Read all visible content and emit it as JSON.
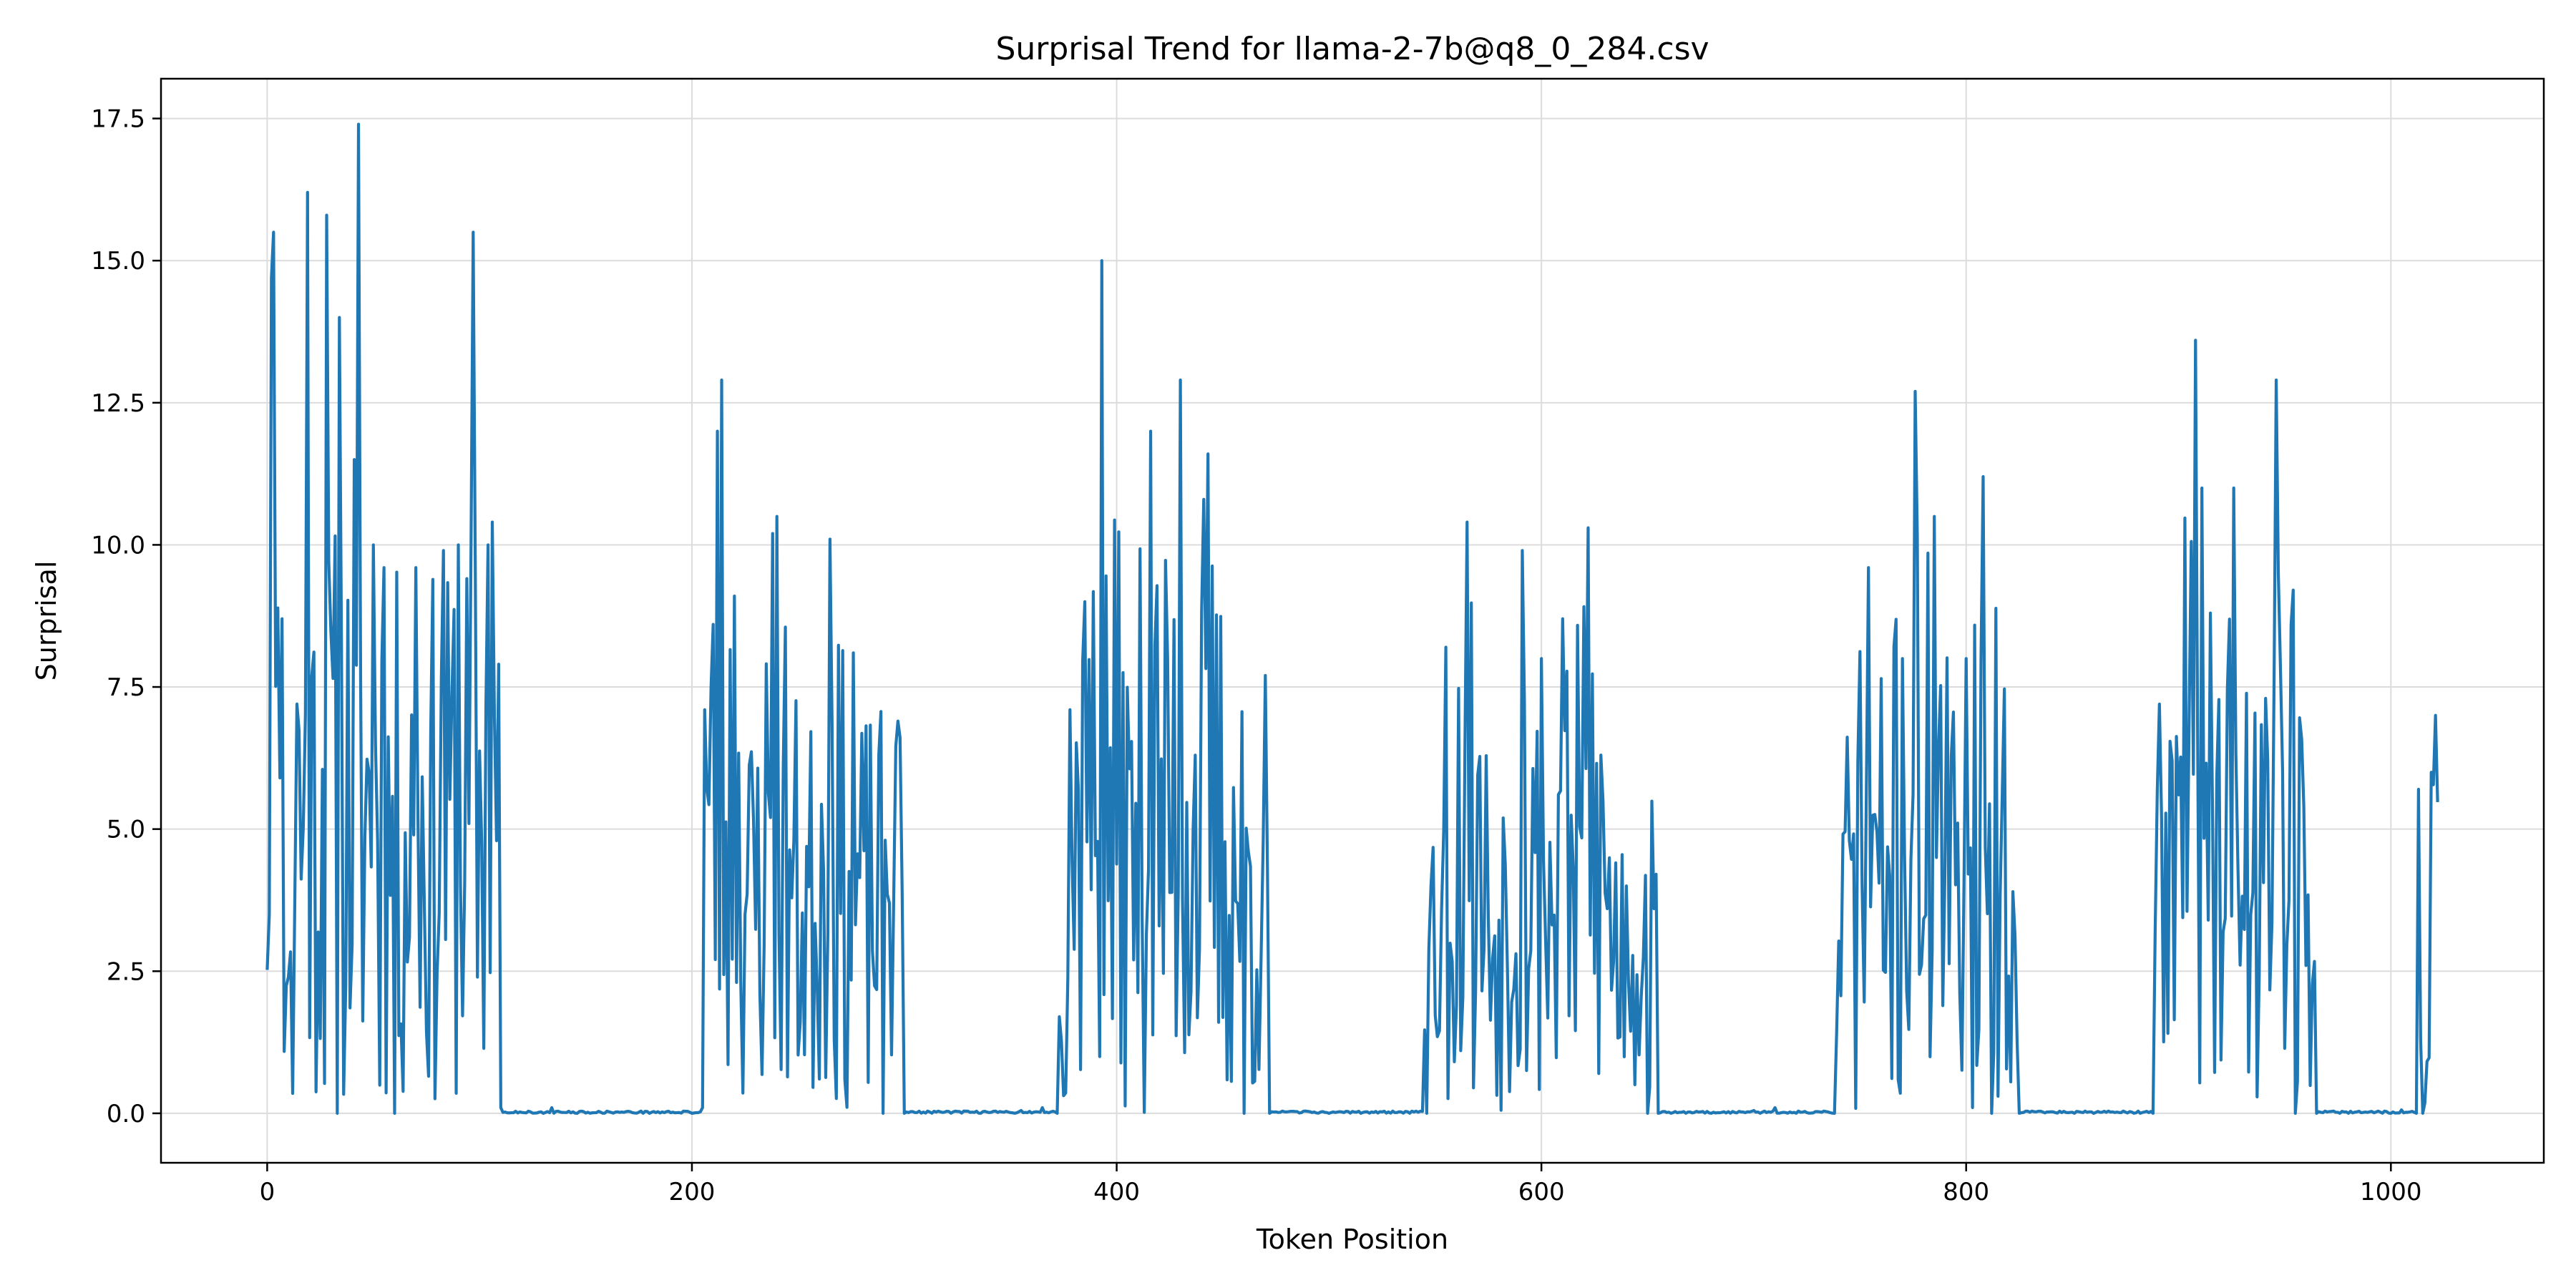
{
  "chart_data": {
    "type": "line",
    "title": "Surprisal Trend for llama-2-7b@q8_0_284.csv",
    "xlabel": "Token Position",
    "ylabel": "Surprisal",
    "xlim": [
      -50,
      1072
    ],
    "ylim": [
      -0.87,
      18.2
    ],
    "xticks": [
      0,
      200,
      400,
      600,
      800,
      1000
    ],
    "xtick_labels": [
      "0",
      "200",
      "400",
      "600",
      "800",
      "1000"
    ],
    "yticks": [
      0,
      2.5,
      5,
      7.5,
      10,
      12.5,
      15,
      17.5
    ],
    "ytick_labels": [
      "0.0",
      "2.5",
      "5.0",
      "7.5",
      "10.0",
      "12.5",
      "15.0",
      "17.5"
    ],
    "grid": true,
    "line_color": "#1f77b4",
    "bursts": [
      {
        "from": 0,
        "to": 110,
        "seed": 11,
        "peaks": [
          [
            1,
            3.5
          ],
          [
            2,
            14.7
          ],
          [
            3,
            15.5
          ],
          [
            6,
            5.9
          ],
          [
            7,
            8.7
          ],
          [
            10,
            2.4
          ],
          [
            12,
            0.35
          ],
          [
            14,
            7.2
          ],
          [
            19,
            16.2
          ],
          [
            28,
            15.8
          ],
          [
            33,
            0
          ],
          [
            34,
            14.0
          ],
          [
            41,
            11.5
          ],
          [
            43,
            17.4
          ],
          [
            50,
            10.0
          ],
          [
            55,
            9.6
          ],
          [
            60,
            0.0
          ],
          [
            70,
            9.6
          ],
          [
            83,
            9.9
          ],
          [
            90,
            10.0
          ],
          [
            97,
            15.5
          ],
          [
            104,
            10.0
          ],
          [
            106,
            10.4
          ],
          [
            109,
            7.9
          ],
          [
            110,
            0.1
          ]
        ]
      },
      {
        "from": 205,
        "to": 300,
        "seed": 23,
        "peaks": [
          [
            205,
            0.1
          ],
          [
            206,
            7.1
          ],
          [
            212,
            12.0
          ],
          [
            214,
            12.9
          ],
          [
            220,
            9.1
          ],
          [
            238,
            10.2
          ],
          [
            240,
            10.5
          ],
          [
            265,
            10.1
          ],
          [
            276,
            8.1
          ],
          [
            290,
            0.0
          ],
          [
            293,
            3.7
          ],
          [
            297,
            6.9
          ],
          [
            300,
            0.0
          ]
        ]
      },
      {
        "from": 372,
        "to": 472,
        "seed": 37,
        "peaks": [
          [
            372,
            0.0
          ],
          [
            373,
            1.7
          ],
          [
            378,
            7.1
          ],
          [
            385,
            9.0
          ],
          [
            393,
            15.0
          ],
          [
            416,
            12.0
          ],
          [
            430,
            12.9
          ],
          [
            441,
            10.8
          ],
          [
            443,
            11.6
          ],
          [
            460,
            0.0
          ],
          [
            469,
            4.8
          ],
          [
            472,
            0.0
          ]
        ]
      },
      {
        "from": 545,
        "to": 655,
        "seed": 53,
        "peaks": [
          [
            546,
            0.0
          ],
          [
            547,
            2.9
          ],
          [
            555,
            8.2
          ],
          [
            565,
            10.4
          ],
          [
            591,
            9.9
          ],
          [
            600,
            8.0
          ],
          [
            610,
            8.7
          ],
          [
            622,
            10.3
          ],
          [
            640,
            4.0
          ],
          [
            650,
            0.0
          ],
          [
            653,
            3.6
          ],
          [
            655,
            0.0
          ]
        ]
      },
      {
        "from": 738,
        "to": 825,
        "seed": 71,
        "peaks": [
          [
            738,
            0.0
          ],
          [
            739,
            1.4
          ],
          [
            749,
            6.2
          ],
          [
            754,
            9.6
          ],
          [
            770,
            8.0
          ],
          [
            776,
            12.7
          ],
          [
            785,
            10.5
          ],
          [
            800,
            8.0
          ],
          [
            808,
            11.2
          ],
          [
            812,
            0.0
          ],
          [
            815,
            0.3
          ],
          [
            822,
            3.9
          ],
          [
            825,
            0.0
          ]
        ]
      },
      {
        "from": 888,
        "to": 965,
        "seed": 89,
        "peaks": [
          [
            888,
            0.0
          ],
          [
            889,
            3.2
          ],
          [
            897,
            6.2
          ],
          [
            908,
            13.6
          ],
          [
            911,
            11.0
          ],
          [
            915,
            8.8
          ],
          [
            926,
            11.0
          ],
          [
            941,
            7.3
          ],
          [
            946,
            12.9
          ],
          [
            955,
            0.0
          ],
          [
            960,
            2.6
          ],
          [
            965,
            0.0
          ]
        ]
      },
      {
        "from": 1012,
        "to": 1022,
        "seed": 97,
        "peaks": [
          [
            1012,
            0.0
          ],
          [
            1013,
            5.7
          ],
          [
            1015,
            0.0
          ],
          [
            1019,
            6.0
          ],
          [
            1021,
            7.0
          ]
        ]
      }
    ],
    "baseline_points": [
      [
        0,
        3.5
      ],
      [
        130,
        0.0
      ],
      [
        134,
        0.1
      ],
      [
        200,
        0.0
      ],
      [
        355,
        0.05
      ],
      [
        365,
        0.1
      ],
      [
        500,
        0.0
      ],
      [
        700,
        0.05
      ],
      [
        710,
        0.1
      ],
      [
        860,
        0.0
      ],
      [
        1000,
        0.0
      ],
      [
        1005,
        0.06
      ],
      [
        1022,
        7.0
      ]
    ]
  }
}
